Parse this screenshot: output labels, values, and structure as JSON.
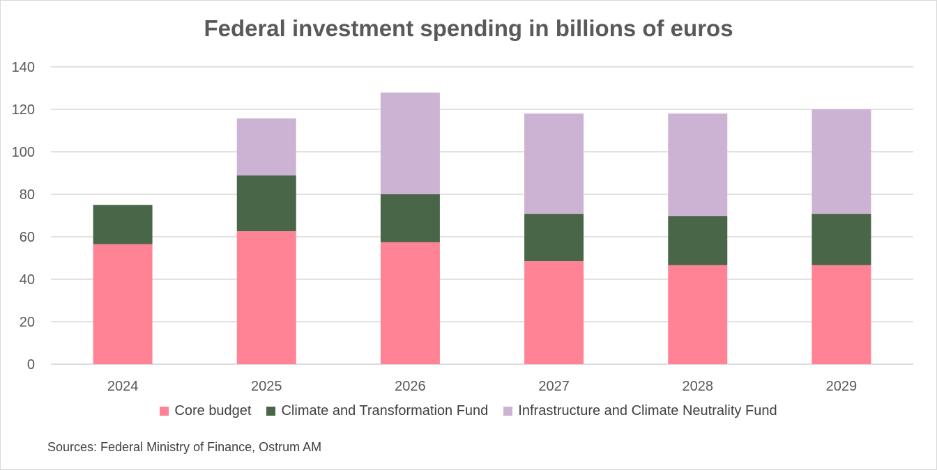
{
  "chart_data": {
    "type": "bar",
    "stacked": true,
    "title": "Federal investment spending in billions of euros",
    "xlabel": "",
    "ylabel": "",
    "ylim": [
      0,
      140
    ],
    "yticks": [
      0,
      20,
      40,
      60,
      80,
      100,
      120,
      140
    ],
    "grid": true,
    "legend_position": "bottom",
    "categories": [
      "2024",
      "2025",
      "2026",
      "2027",
      "2028",
      "2029"
    ],
    "series": [
      {
        "name": "Core budget",
        "color": "#ff8295",
        "values": [
          56.5,
          62.6,
          57.4,
          48.5,
          46.6,
          46.6
        ]
      },
      {
        "name": "Climate and Transformation Fund",
        "color": "#4a6649",
        "values": [
          18.5,
          26.3,
          22.6,
          22.3,
          23.2,
          24.2
        ]
      },
      {
        "name": "Infrastructure and Climate Neutrality Fund",
        "color": "#ccb3d3",
        "values": [
          0,
          26.8,
          47.9,
          47.2,
          48.2,
          49.2
        ]
      }
    ],
    "source": "Sources: Federal Ministry of Finance, Ostrum AM"
  }
}
